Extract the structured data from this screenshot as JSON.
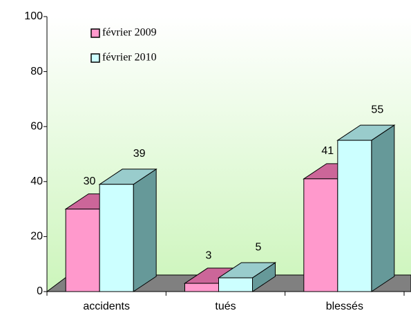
{
  "chart_data": {
    "type": "bar3d",
    "categories": [
      "accidents",
      "tués",
      "blessés"
    ],
    "series": [
      {
        "name": "février 2009",
        "color": "#ff99cc",
        "top_color": "#cc6699",
        "side_color": "#b35580",
        "values": [
          30,
          3,
          41
        ]
      },
      {
        "name": "février 2010",
        "color": "#ccffff",
        "top_color": "#99cccc",
        "side_color": "#669999",
        "values": [
          39,
          5,
          55
        ]
      }
    ],
    "ylim": [
      0,
      100
    ],
    "yticks": [
      0,
      20,
      40,
      60,
      80,
      100
    ],
    "legend": "upper left"
  }
}
